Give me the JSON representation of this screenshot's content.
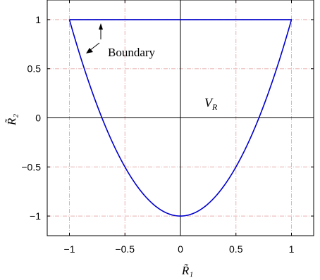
{
  "chart_data": {
    "type": "line",
    "xlabel": "R̃₁",
    "ylabel": "R̃₂",
    "xlim": [
      -1.2,
      1.2
    ],
    "ylim": [
      -1.2,
      1.2
    ],
    "xticks": [
      -1,
      -0.5,
      0,
      0.5,
      1
    ],
    "yticks": [
      -1,
      -0.5,
      0,
      0.5,
      1
    ],
    "x_tick_labels": [
      "−1",
      "−0.5",
      "0",
      "0.5",
      "1"
    ],
    "y_tick_labels": [
      "−1",
      "−0.5",
      "0",
      "0.5",
      "1"
    ],
    "grid": true,
    "series": [
      {
        "color": "#0000cc",
        "x": [
          -1.0,
          -0.9,
          -0.8,
          -0.7,
          -0.6,
          -0.5,
          -0.4,
          -0.3,
          -0.2,
          -0.1,
          0.0,
          0.1,
          0.2,
          0.3,
          0.4,
          0.5,
          0.6,
          0.7,
          0.8,
          0.9,
          1.0,
          -1.0
        ],
        "y": [
          1.0,
          0.62,
          0.28,
          -0.02,
          -0.28,
          -0.5,
          -0.68,
          -0.82,
          -0.92,
          -0.98,
          -1.0,
          -0.98,
          -0.92,
          -0.82,
          -0.68,
          -0.5,
          -0.28,
          -0.02,
          0.28,
          0.62,
          1.0,
          1.0
        ]
      }
    ],
    "annotations": [
      {
        "text": "Boundary",
        "position": "upper-left"
      },
      {
        "text": "V",
        "subscript": "R",
        "position": "center-right"
      }
    ]
  }
}
